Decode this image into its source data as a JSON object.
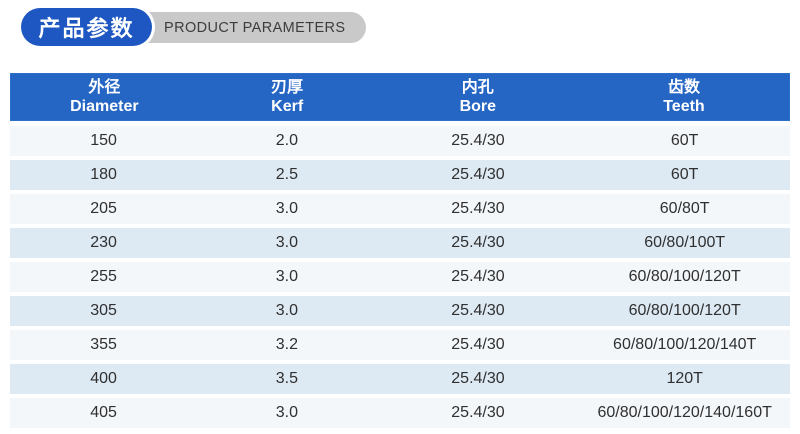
{
  "header": {
    "title_zh": "产品参数",
    "title_en": "PRODUCT PARAMETERS"
  },
  "colors": {
    "badge_blue": "#1e57c2",
    "table_header_blue": "#2565c4",
    "row_light": "#f3f7fa",
    "row_alt_blue": "#dde9f3",
    "pill_gray": "#c9c9c9",
    "body_text": "#303030"
  },
  "table": {
    "columns": [
      {
        "zh": "外径",
        "en": "Diameter"
      },
      {
        "zh": "刃厚",
        "en": "Kerf"
      },
      {
        "zh": "内孔",
        "en": "Bore"
      },
      {
        "zh": "齿数",
        "en": "Teeth"
      }
    ],
    "rows": [
      {
        "diameter": "150",
        "kerf": "2.0",
        "bore": "25.4/30",
        "teeth": "60T"
      },
      {
        "diameter": "180",
        "kerf": "2.5",
        "bore": "25.4/30",
        "teeth": "60T"
      },
      {
        "diameter": "205",
        "kerf": "3.0",
        "bore": "25.4/30",
        "teeth": "60/80T"
      },
      {
        "diameter": "230",
        "kerf": "3.0",
        "bore": "25.4/30",
        "teeth": "60/80/100T"
      },
      {
        "diameter": "255",
        "kerf": "3.0",
        "bore": "25.4/30",
        "teeth": "60/80/100/120T"
      },
      {
        "diameter": "305",
        "kerf": "3.0",
        "bore": "25.4/30",
        "teeth": "60/80/100/120T"
      },
      {
        "diameter": "355",
        "kerf": "3.2",
        "bore": "25.4/30",
        "teeth": "60/80/100/120/140T"
      },
      {
        "diameter": "400",
        "kerf": "3.5",
        "bore": "25.4/30",
        "teeth": "120T"
      },
      {
        "diameter": "405",
        "kerf": "3.0",
        "bore": "25.4/30",
        "teeth": "60/80/100/120/140/160T"
      }
    ]
  }
}
